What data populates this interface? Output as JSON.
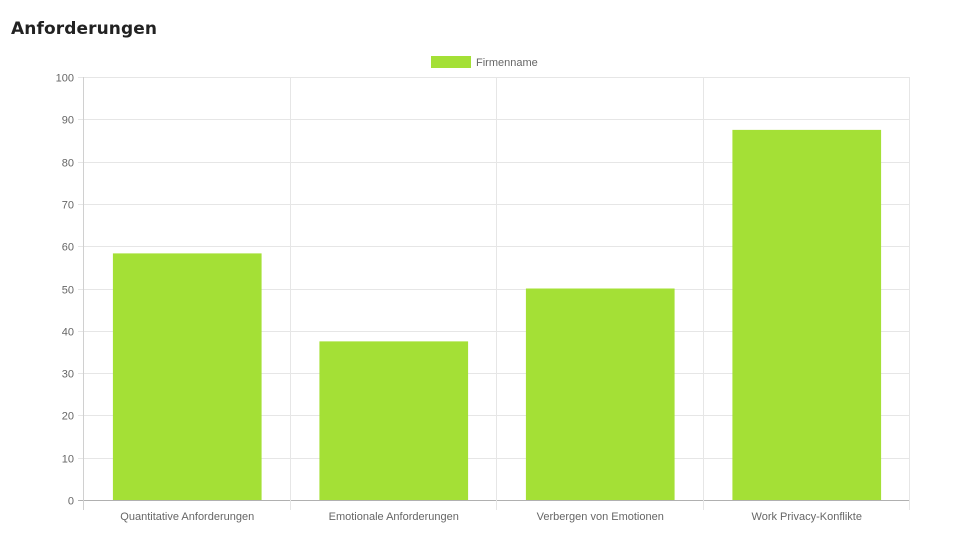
{
  "page": {
    "title": "Anforderungen"
  },
  "chart_data": {
    "type": "bar",
    "title": "",
    "xlabel": "",
    "ylabel": "",
    "categories": [
      "Quantitative Anforderungen",
      "Emotionale Anforderungen",
      "Verbergen von Emotionen",
      "Work Privacy-Konflikte"
    ],
    "series": [
      {
        "name": "Firmenname",
        "color": "#a4e036",
        "values": [
          58.3,
          37.5,
          50,
          87.5
        ]
      }
    ],
    "ylim": [
      0,
      100
    ],
    "yticks": [
      "0",
      "10",
      "20",
      "30",
      "40",
      "50",
      "60",
      "70",
      "80",
      "90",
      "100"
    ],
    "grid": true,
    "legend_position": "top-center"
  }
}
